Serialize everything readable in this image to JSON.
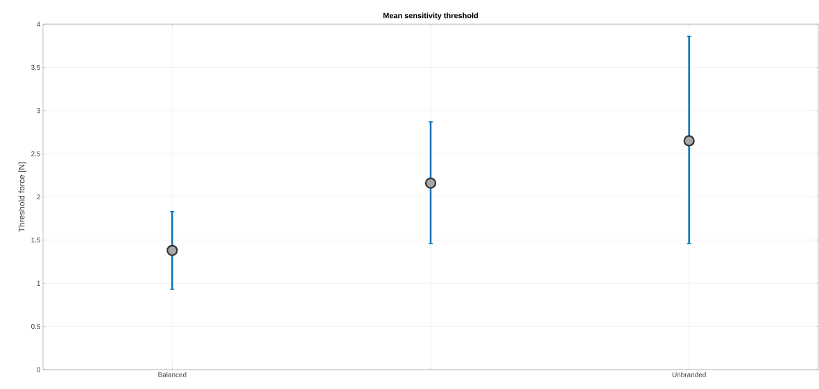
{
  "chart_data": {
    "type": "scatter",
    "title": "Mean sensitivity threshold",
    "ylabel": "Threshold force [N]",
    "categories": [
      "Balanced",
      null,
      "Unbranded"
    ],
    "series": [
      {
        "color": "#a6a6a6",
        "values": [
          1.38,
          2.16,
          2.65
        ],
        "errors": [
          [
            0.93,
            1.83
          ],
          [
            1.46,
            2.87
          ],
          [
            1.46,
            3.86
          ]
        ]
      }
    ],
    "ylim": [
      0,
      4
    ],
    "yticks": [
      0,
      0.5,
      1,
      1.5,
      2,
      2.5,
      3,
      3.5,
      4
    ],
    "grid": true,
    "marker": "circle"
  }
}
